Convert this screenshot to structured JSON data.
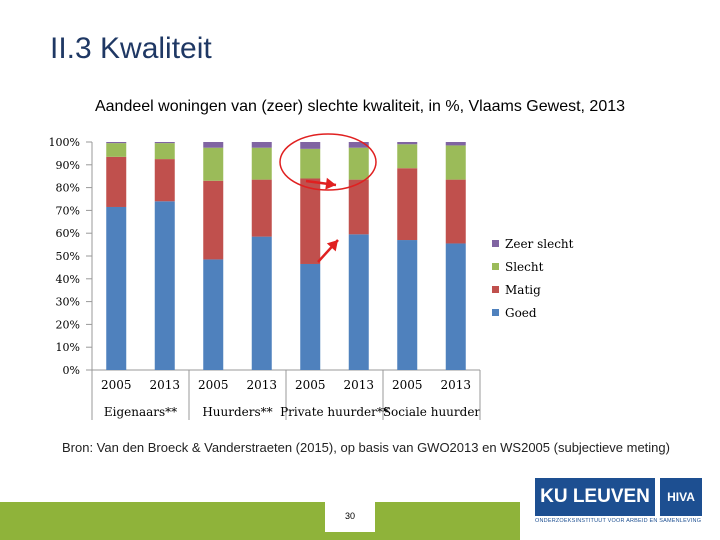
{
  "slide": {
    "title": "II.3 Kwaliteit",
    "source": "Bron: Van den Broeck & Vanderstraeten (2015), op basis van GWO2013 en WS2005 (subjectieve meting)",
    "page_number": "30"
  },
  "logos": {
    "ku": "KU LEUVEN",
    "hiva": "HIVA",
    "subtitle": "ONDERZOEKSINSTITUUT VOOR ARBEID EN SAMENLEVING"
  },
  "colors": {
    "goed": "#4f81bd",
    "matig": "#c0504d",
    "slecht": "#9bbb59",
    "zeer_slecht": "#8064a2",
    "highlight": "#e02020",
    "footer": "#8fb33a"
  },
  "chart_data": {
    "type": "bar",
    "stacked": true,
    "title": "Aandeel woningen van (zeer) slechte kwaliteit, in %, Vlaams Gewest, 2013",
    "categories": [
      "2005",
      "2013",
      "2005",
      "2013",
      "2005",
      "2013",
      "2005",
      "2013"
    ],
    "groups": [
      {
        "label": "Eigenaars**",
        "span": [
          0,
          1
        ]
      },
      {
        "label": "Huurders**",
        "span": [
          2,
          3
        ]
      },
      {
        "label": "Private huurder**",
        "span": [
          4,
          5
        ]
      },
      {
        "label": "Sociale huurder",
        "span": [
          6,
          7
        ]
      }
    ],
    "series": [
      {
        "name": "Goed",
        "values": [
          71.5,
          74,
          48.5,
          58.5,
          46.5,
          59.5,
          57,
          55.5
        ]
      },
      {
        "name": "Matig",
        "values": [
          22,
          18.5,
          34.5,
          25,
          37.5,
          24,
          31.5,
          28
        ]
      },
      {
        "name": "Slecht",
        "values": [
          6,
          7,
          14.5,
          14,
          13,
          14,
          10.5,
          15
        ]
      },
      {
        "name": "Zeer slecht",
        "values": [
          0.5,
          0.5,
          2.5,
          2.5,
          3,
          2.5,
          1,
          1.5
        ]
      }
    ],
    "yticks": [
      "0%",
      "10%",
      "20%",
      "30%",
      "40%",
      "50%",
      "60%",
      "70%",
      "80%",
      "90%",
      "100%"
    ],
    "ylim": [
      0,
      100
    ],
    "legend_position": "right",
    "annotations": [
      "circle around Zeer slecht segments of Huurders 2013 and Private huurder 2005/2013",
      "red arrows pointing to Private huurder 2013 bar"
    ]
  }
}
